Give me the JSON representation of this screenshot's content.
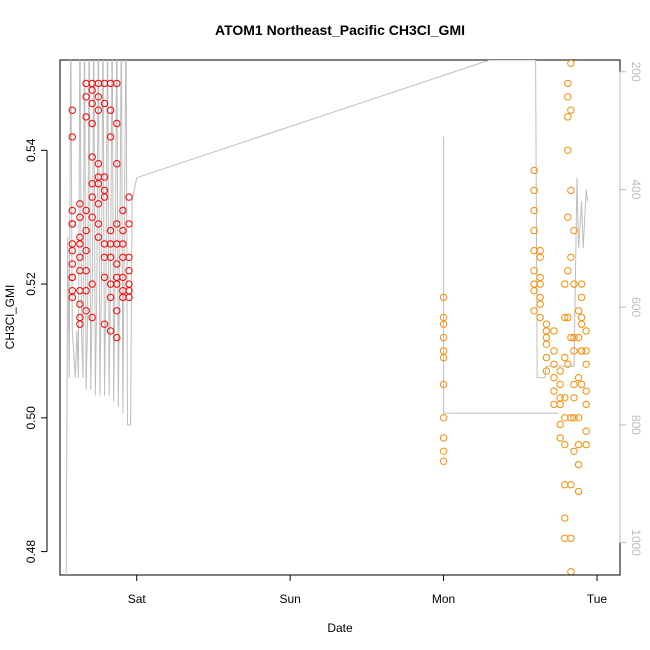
{
  "chart_data": {
    "type": "scatter",
    "title": "ATOM1 Northeast_Pacific CH3Cl_GMI",
    "xlabel": "Date",
    "ylabel": "CH3Cl_GMI",
    "x_ticks": [
      "Sat",
      "Sun",
      "Mon",
      "Tue"
    ],
    "xlim_days": [
      -0.5,
      3.15
    ],
    "ylim": [
      0.4765,
      0.5535
    ],
    "y_ticks": [
      0.48,
      0.5,
      0.52,
      0.54
    ],
    "y2_label": "",
    "y2lim": [
      1055,
      180
    ],
    "y2_ticks": [
      200,
      400,
      600,
      800,
      1000
    ],
    "grid": false,
    "legend": "none",
    "colors": {
      "series1": "#ff0000",
      "series2": "#ff8c00",
      "altitude_line": "#bdbdbd",
      "axis": "#000000",
      "right_axis": "#bdbdbd"
    },
    "series": [
      {
        "color_key": "series1",
        "clusters": [
          {
            "x": -0.42,
            "values": [
              0.518,
              0.523,
              0.529,
              0.526,
              0.521,
              0.531,
              0.546,
              0.542,
              0.521,
              0.519,
              0.525,
              0.529
            ]
          },
          {
            "x": -0.37,
            "values": [
              0.515,
              0.519,
              0.524,
              0.527,
              0.53,
              0.522,
              0.517,
              0.514,
              0.526,
              0.532
            ]
          },
          {
            "x": -0.33,
            "values": [
              0.55,
              0.548,
              0.545,
              0.522,
              0.525,
              0.519,
              0.516,
              0.528,
              0.531
            ]
          },
          {
            "x": -0.29,
            "values": [
              0.539,
              0.535,
              0.533,
              0.53,
              0.547,
              0.55,
              0.549,
              0.544,
              0.52,
              0.515
            ]
          },
          {
            "x": -0.25,
            "values": [
              0.536,
              0.538,
              0.535,
              0.532,
              0.55,
              0.548,
              0.546,
              0.529,
              0.527
            ]
          },
          {
            "x": -0.21,
            "values": [
              0.534,
              0.536,
              0.533,
              0.55,
              0.547,
              0.526,
              0.524,
              0.521,
              0.514
            ]
          },
          {
            "x": -0.17,
            "values": [
              0.528,
              0.526,
              0.524,
              0.55,
              0.546,
              0.542,
              0.52,
              0.518,
              0.513
            ]
          },
          {
            "x": -0.13,
            "values": [
              0.529,
              0.526,
              0.523,
              0.521,
              0.55,
              0.544,
              0.538,
              0.516,
              0.512,
              0.52
            ]
          },
          {
            "x": -0.09,
            "values": [
              0.524,
              0.521,
              0.518,
              0.528,
              0.531,
              0.526,
              0.519
            ]
          },
          {
            "x": -0.05,
            "values": [
              0.522,
              0.519,
              0.524,
              0.533,
              0.529,
              0.52,
              0.518
            ]
          }
        ]
      },
      {
        "color_key": "series2",
        "clusters": [
          {
            "x": 2.0,
            "values": [
              0.4935,
              0.495,
              0.497,
              0.5,
              0.505,
              0.509,
              0.512,
              0.515,
              0.518,
              0.514,
              0.51
            ]
          },
          {
            "x": 2.59,
            "values": [
              0.52,
              0.522,
              0.525,
              0.528,
              0.531,
              0.534,
              0.537,
              0.519,
              0.516
            ]
          },
          {
            "x": 2.63,
            "values": [
              0.515,
              0.518,
              0.521,
              0.524,
              0.525,
              0.52,
              0.517
            ]
          },
          {
            "x": 2.67,
            "values": [
              0.512,
              0.514,
              0.513,
              0.509,
              0.507,
              0.511
            ]
          },
          {
            "x": 2.72,
            "values": [
              0.506,
              0.504,
              0.502,
              0.51,
              0.513,
              0.508
            ]
          },
          {
            "x": 2.76,
            "values": [
              0.499,
              0.497,
              0.502,
              0.505,
              0.507,
              0.503
            ]
          },
          {
            "x": 2.79,
            "values": [
              0.52,
              0.515,
              0.509,
              0.503,
              0.496,
              0.49,
              0.485,
              0.482,
              0.5
            ]
          },
          {
            "x": 2.81,
            "values": [
              0.548,
              0.55,
              0.545,
              0.54,
              0.53,
              0.522,
              0.515,
              0.508
            ]
          },
          {
            "x": 2.83,
            "values": [
              0.553,
              0.546,
              0.534,
              0.524,
              0.512,
              0.5,
              0.49,
              0.482,
              0.477
            ]
          },
          {
            "x": 2.85,
            "values": [
              0.51,
              0.505,
              0.5,
              0.495,
              0.503,
              0.512,
              0.52,
              0.528
            ]
          },
          {
            "x": 2.88,
            "values": [
              0.516,
              0.512,
              0.506,
              0.5,
              0.493,
              0.489,
              0.496
            ]
          },
          {
            "x": 2.9,
            "values": [
              0.52,
              0.518,
              0.514,
              0.51,
              0.505,
              0.51,
              0.515
            ]
          },
          {
            "x": 2.93,
            "values": [
              0.513,
              0.51,
              0.504,
              0.498,
              0.496,
              0.502,
              0.508
            ]
          }
        ]
      }
    ],
    "altitude_path": [
      [
        -0.46,
        1110
      ],
      [
        -0.45,
        480
      ],
      [
        -0.44,
        720
      ],
      [
        -0.43,
        100
      ],
      [
        -0.42,
        640
      ],
      [
        -0.4,
        720
      ],
      [
        -0.39,
        640
      ],
      [
        -0.38,
        720
      ],
      [
        -0.37,
        100
      ],
      [
        -0.36,
        640
      ],
      [
        -0.35,
        720
      ],
      [
        -0.34,
        100
      ],
      [
        -0.33,
        740
      ],
      [
        -0.32,
        620
      ],
      [
        -0.31,
        100
      ],
      [
        -0.3,
        740
      ],
      [
        -0.29,
        600
      ],
      [
        -0.28,
        100
      ],
      [
        -0.27,
        750
      ],
      [
        -0.26,
        580
      ],
      [
        -0.25,
        100
      ],
      [
        -0.24,
        750
      ],
      [
        -0.23,
        560
      ],
      [
        -0.22,
        100
      ],
      [
        -0.21,
        750
      ],
      [
        -0.2,
        560
      ],
      [
        -0.19,
        100
      ],
      [
        -0.18,
        750
      ],
      [
        -0.17,
        540
      ],
      [
        -0.16,
        100
      ],
      [
        -0.15,
        760
      ],
      [
        -0.14,
        520
      ],
      [
        -0.13,
        100
      ],
      [
        -0.12,
        770
      ],
      [
        -0.11,
        500
      ],
      [
        -0.1,
        100
      ],
      [
        -0.09,
        780
      ],
      [
        -0.08,
        460
      ],
      [
        -0.07,
        100
      ],
      [
        -0.06,
        800
      ],
      [
        -0.04,
        800
      ],
      [
        -0.03,
        420
      ],
      [
        0.0,
        380
      ],
      [
        2.3,
        180
      ],
      [
        2.6,
        180
      ],
      [
        2.61,
        720
      ],
      [
        2.66,
        720
      ],
      [
        2.67,
        700
      ],
      [
        2.85,
        700
      ],
      [
        2.87,
        380
      ],
      [
        2.88,
        500
      ],
      [
        2.9,
        420
      ],
      [
        2.91,
        500
      ],
      [
        2.93,
        400
      ],
      [
        2.94,
        420
      ]
    ],
    "altitude_path2": [
      [
        2.0,
        310
      ],
      [
        2.0,
        780
      ],
      [
        2.75,
        780
      ]
    ]
  }
}
